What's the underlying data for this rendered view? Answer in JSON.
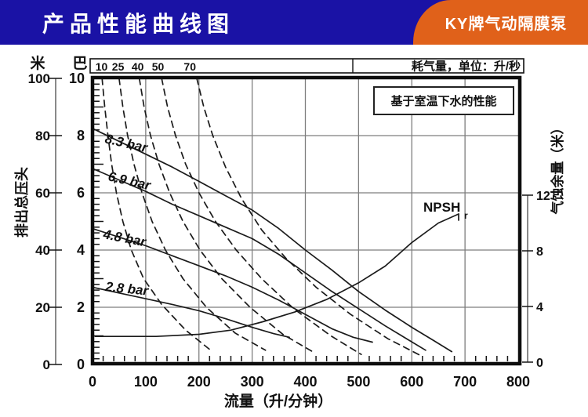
{
  "header": {
    "title": "产品性能曲线图",
    "badge": "KY牌气动隔膜泵",
    "colors": {
      "bar_blue": "#1A12A5",
      "badge_orange": "#E0611A"
    }
  },
  "chart_data": {
    "type": "line",
    "title": "产品性能曲线图",
    "note": "基于室温下水的性能",
    "x_axis": {
      "title": "流量（升/分钟）",
      "min": 0,
      "max": 800,
      "ticks": [
        0,
        100,
        200,
        300,
        400,
        500,
        600,
        700,
        800
      ],
      "minor_step": 20,
      "grid": [
        100,
        200,
        300,
        400,
        500,
        600,
        700
      ]
    },
    "left_axis_bar": {
      "unit": "巴",
      "min": 0,
      "max": 10,
      "ticks": [
        0,
        2,
        4,
        6,
        8,
        10
      ],
      "minor_step": 0.2,
      "grid": [
        2,
        4,
        6,
        8
      ]
    },
    "left_axis_m": {
      "unit": "米",
      "title": "排出总压头",
      "min": 0,
      "max": 100,
      "ticks": [
        0,
        20,
        40,
        60,
        80,
        100
      ]
    },
    "right_axis": {
      "title": "气蚀余量（米）",
      "min": 0,
      "max": 12,
      "ticks": [
        0,
        4,
        8,
        12
      ]
    },
    "top_strip": {
      "title": "耗气量，单位：升/秒",
      "values": [
        10,
        25,
        40,
        50,
        70
      ],
      "value_flows": [
        17,
        48,
        85,
        123,
        183
      ]
    },
    "series": [
      {
        "name": "8.3 bar",
        "style": "solid",
        "points": [
          [
            0,
            8.25
          ],
          [
            50,
            7.8
          ],
          [
            100,
            7.35
          ],
          [
            150,
            6.9
          ],
          [
            200,
            6.4
          ],
          [
            250,
            5.9
          ],
          [
            300,
            5.4
          ],
          [
            350,
            4.75
          ],
          [
            400,
            4.0
          ],
          [
            450,
            3.3
          ],
          [
            500,
            2.55
          ],
          [
            550,
            1.9
          ],
          [
            600,
            1.3
          ],
          [
            640,
            0.85
          ],
          [
            675,
            0.45
          ]
        ]
      },
      {
        "name": "6.9 bar",
        "style": "solid",
        "points": [
          [
            0,
            6.85
          ],
          [
            50,
            6.45
          ],
          [
            100,
            6.05
          ],
          [
            150,
            5.6
          ],
          [
            200,
            5.2
          ],
          [
            250,
            4.8
          ],
          [
            300,
            4.4
          ],
          [
            350,
            3.85
          ],
          [
            400,
            3.2
          ],
          [
            450,
            2.55
          ],
          [
            500,
            1.95
          ],
          [
            550,
            1.35
          ],
          [
            590,
            0.9
          ],
          [
            626,
            0.5
          ]
        ]
      },
      {
        "name": "4.8 bar",
        "style": "solid",
        "points": [
          [
            0,
            4.75
          ],
          [
            50,
            4.45
          ],
          [
            100,
            4.15
          ],
          [
            150,
            3.8
          ],
          [
            200,
            3.45
          ],
          [
            250,
            3.1
          ],
          [
            300,
            2.7
          ],
          [
            350,
            2.25
          ],
          [
            400,
            1.75
          ],
          [
            450,
            1.25
          ],
          [
            490,
            0.95
          ],
          [
            526,
            0.78
          ]
        ]
      },
      {
        "name": "2.8 bar",
        "style": "solid",
        "points": [
          [
            0,
            2.7
          ],
          [
            50,
            2.5
          ],
          [
            100,
            2.3
          ],
          [
            150,
            2.1
          ],
          [
            200,
            1.88
          ],
          [
            250,
            1.6
          ],
          [
            300,
            1.3
          ],
          [
            340,
            1.08
          ],
          [
            370,
            0.95
          ]
        ]
      }
    ],
    "air_lines": [
      {
        "value": 10,
        "points": [
          [
            18,
            10
          ],
          [
            23,
            9
          ],
          [
            29,
            8
          ],
          [
            36,
            7
          ],
          [
            45,
            6
          ],
          [
            57,
            5
          ],
          [
            73,
            4
          ],
          [
            96,
            3
          ],
          [
            130,
            2.1
          ],
          [
            175,
            1.2
          ],
          [
            222,
            0.5
          ]
        ]
      },
      {
        "value": 25,
        "points": [
          [
            50,
            10
          ],
          [
            57,
            9
          ],
          [
            66,
            8
          ],
          [
            78,
            7
          ],
          [
            93,
            6
          ],
          [
            112,
            5
          ],
          [
            137,
            4
          ],
          [
            170,
            3
          ],
          [
            214,
            2
          ],
          [
            268,
            1.1
          ],
          [
            325,
            0.5
          ]
        ]
      },
      {
        "value": 40,
        "points": [
          [
            88,
            10
          ],
          [
            97,
            9
          ],
          [
            109,
            8
          ],
          [
            125,
            7
          ],
          [
            145,
            6
          ],
          [
            170,
            5
          ],
          [
            202,
            4
          ],
          [
            243,
            3
          ],
          [
            296,
            2
          ],
          [
            358,
            1.05
          ],
          [
            418,
            0.4
          ]
        ]
      },
      {
        "value": 50,
        "points": [
          [
            130,
            10
          ],
          [
            141,
            9
          ],
          [
            156,
            8
          ],
          [
            175,
            7
          ],
          [
            200,
            6
          ],
          [
            231,
            5
          ],
          [
            270,
            4
          ],
          [
            318,
            3
          ],
          [
            378,
            1.95
          ],
          [
            448,
            1.0
          ],
          [
            505,
            0.35
          ]
        ]
      },
      {
        "value": 70,
        "points": [
          [
            196,
            10
          ],
          [
            209,
            9
          ],
          [
            226,
            8
          ],
          [
            250,
            6.9
          ],
          [
            280,
            5.8
          ],
          [
            318,
            4.7
          ],
          [
            364,
            3.7
          ],
          [
            420,
            2.7
          ],
          [
            485,
            1.75
          ],
          [
            555,
            0.9
          ],
          [
            618,
            0.3
          ]
        ]
      }
    ],
    "npsh": {
      "label": "NPSH",
      "sub": "r",
      "axis": "right",
      "points": [
        [
          5,
          1.85
        ],
        [
          120,
          1.85
        ],
        [
          200,
          2.0
        ],
        [
          260,
          2.3
        ],
        [
          320,
          2.9
        ],
        [
          380,
          3.6
        ],
        [
          440,
          4.5
        ],
        [
          500,
          5.7
        ],
        [
          550,
          6.9
        ],
        [
          600,
          8.6
        ],
        [
          650,
          10.0
        ],
        [
          688,
          10.65
        ]
      ]
    }
  }
}
